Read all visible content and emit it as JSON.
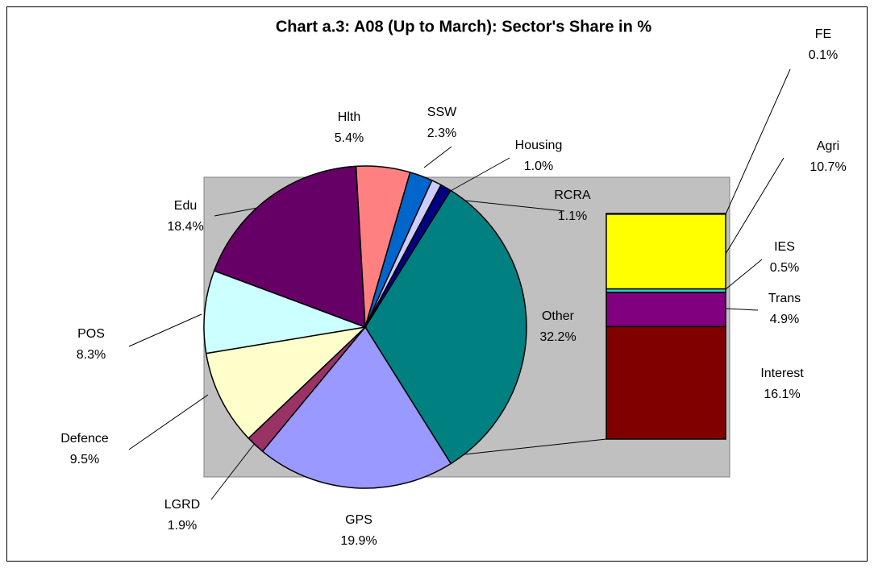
{
  "chart_data": {
    "type": "pie",
    "title": "Chart a.3: A08 (Up to March): Sector's Share in %",
    "categories": [
      "Other",
      "GPS",
      "LGRD",
      "Defence",
      "POS",
      "Edu",
      "Hlth",
      "SSW",
      "Housing",
      "RCRA"
    ],
    "values": [
      32.2,
      19.9,
      1.9,
      9.5,
      8.3,
      18.4,
      5.4,
      2.3,
      1.0,
      1.1
    ],
    "value_labels": [
      "32.2%",
      "19.9%",
      "1.9%",
      "9.5%",
      "8.3%",
      "18.4%",
      "5.4%",
      "2.3%",
      "1.0%",
      "1.1%"
    ],
    "colors": [
      "#008080",
      "#9999ff",
      "#993366",
      "#ffffcc",
      "#ccffff",
      "#660066",
      "#ff8080",
      "#0066cc",
      "#ccccff",
      "#000080"
    ],
    "bar": {
      "categories": [
        "FE",
        "Agri",
        "IES",
        "Trans",
        "Interest"
      ],
      "values": [
        0.1,
        10.7,
        0.5,
        4.9,
        16.1
      ],
      "value_labels": [
        "0.1%",
        "10.7%",
        "0.5%",
        "4.9%",
        "16.1%"
      ],
      "colors": [
        "#ffffcc",
        "#ffff00",
        "#33cccc",
        "#800080",
        "#800000"
      ]
    }
  }
}
